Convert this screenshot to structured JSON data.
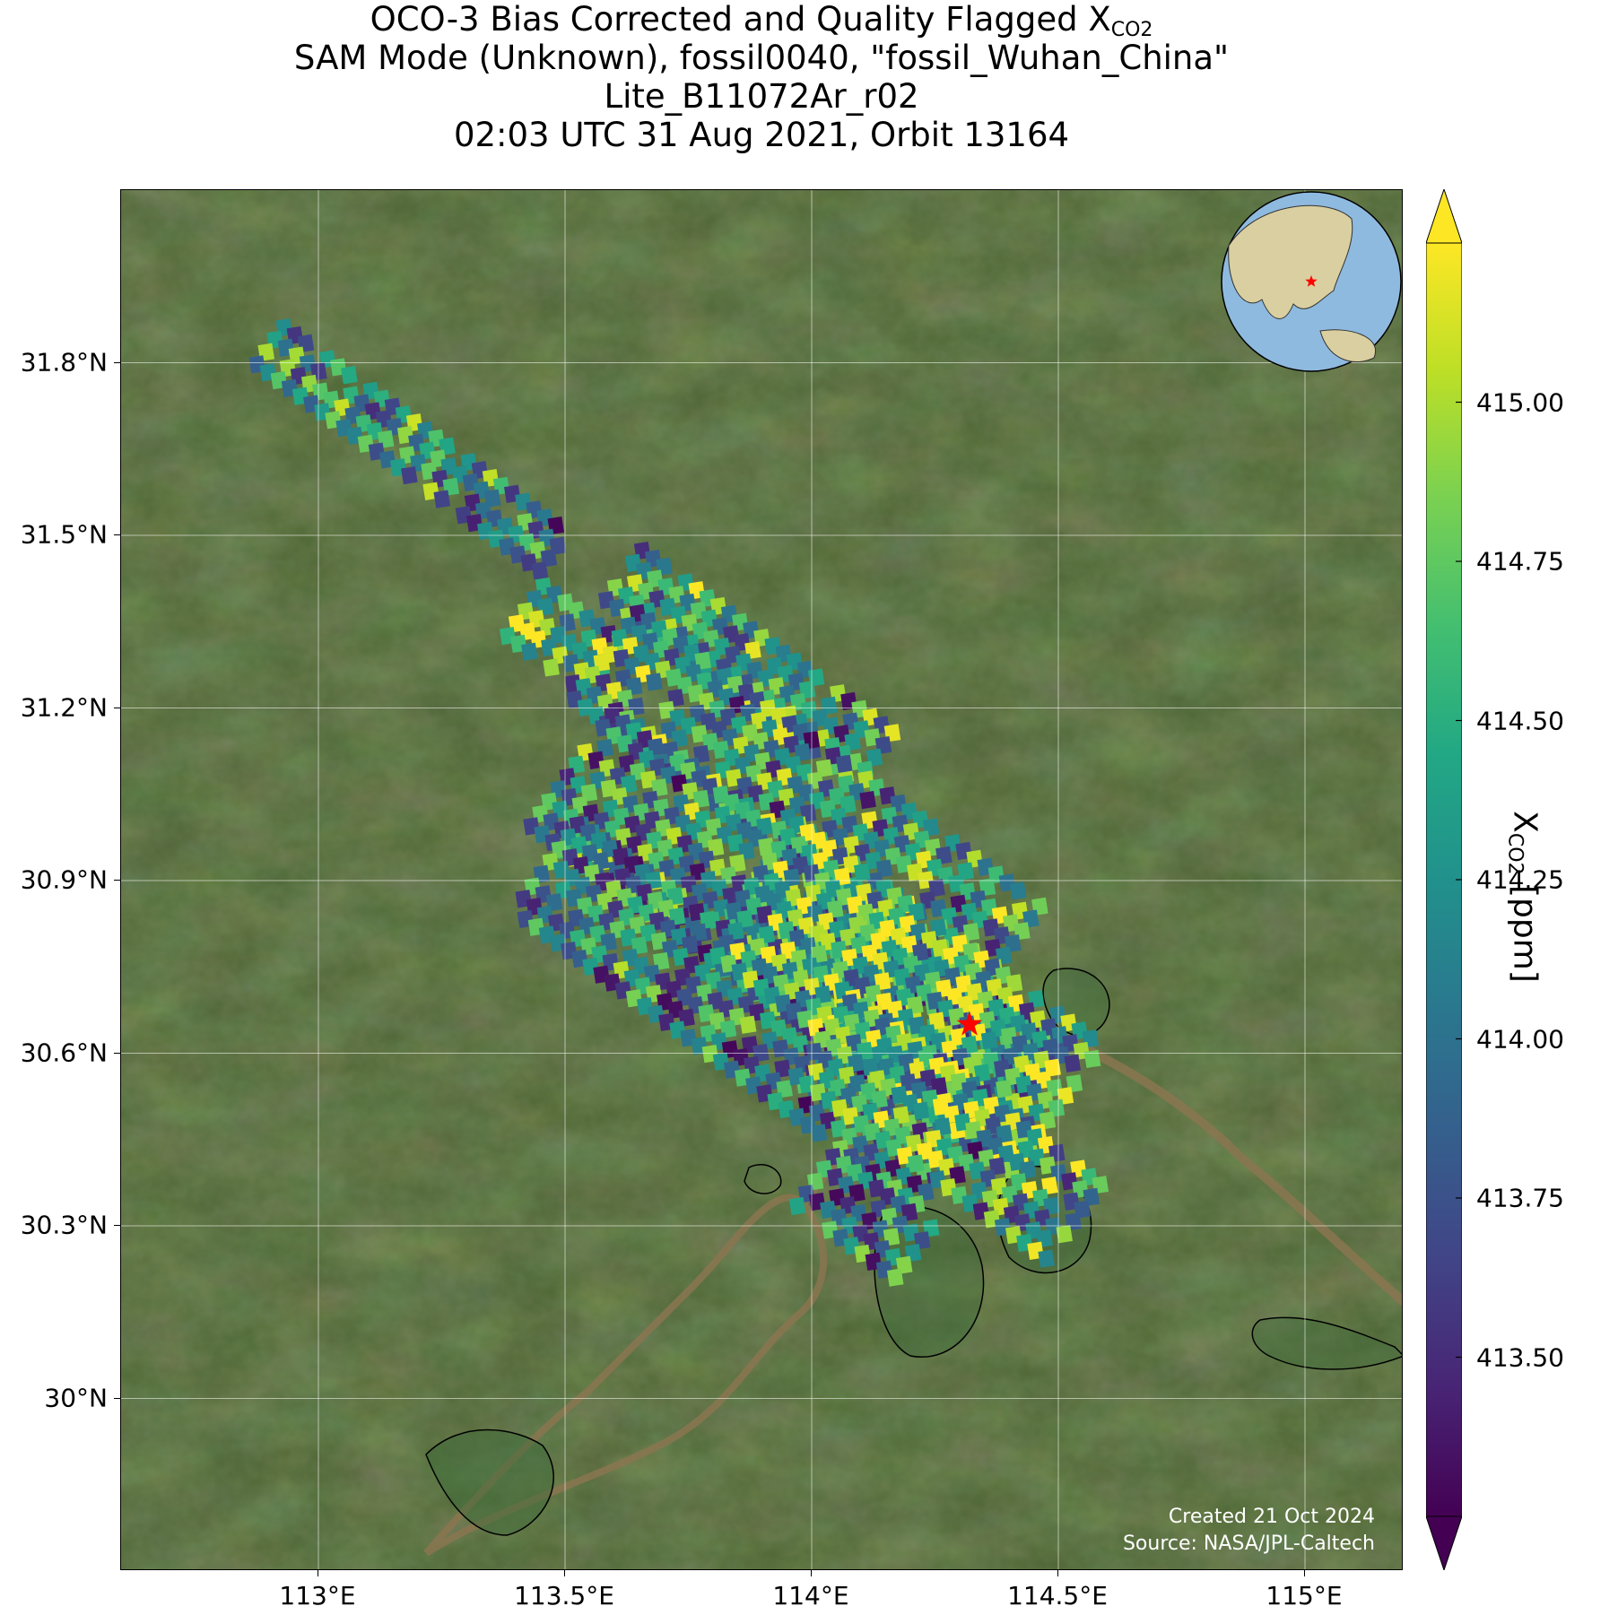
{
  "title": {
    "line1_prefix": "OCO-3 Bias Corrected and Quality Flagged X",
    "line1_subscript": "CO2",
    "line2": "SAM Mode (Unknown), fossil0040, \"fossil_Wuhan_China\"",
    "line3": "Lite_B11072Ar_r02",
    "line4": "02:03 UTC 31 Aug 2021, Orbit 13164"
  },
  "map": {
    "lon_range": [
      112.6,
      115.2
    ],
    "lat_range": [
      29.7,
      32.1
    ],
    "lon_ticks": [
      {
        "value": 113.0,
        "label": "113°E"
      },
      {
        "value": 113.5,
        "label": "113.5°E"
      },
      {
        "value": 114.0,
        "label": "114°E"
      },
      {
        "value": 114.5,
        "label": "114.5°E"
      },
      {
        "value": 115.0,
        "label": "115°E"
      }
    ],
    "lat_ticks": [
      {
        "value": 31.8,
        "label": "31.8°N"
      },
      {
        "value": 31.5,
        "label": "31.5°N"
      },
      {
        "value": 31.2,
        "label": "31.2°N"
      },
      {
        "value": 30.9,
        "label": "30.9°N"
      },
      {
        "value": 30.6,
        "label": "30.6°N"
      },
      {
        "value": 30.3,
        "label": "30.3°N"
      },
      {
        "value": 30.0,
        "label": "30°N"
      }
    ],
    "target_marker": {
      "lon": 114.32,
      "lat": 30.65,
      "color": "#ff0000"
    },
    "inset_globe": {
      "center_lon": 115.0,
      "center_lat": 30.0,
      "marker_color": "#ff0000"
    },
    "credit_line1": "Created 21 Oct 2024",
    "credit_line2": "Source: NASA/JPL-Caltech"
  },
  "colorbar": {
    "colormap": "viridis",
    "vmin": 413.25,
    "vmax": 415.25,
    "extend": "both",
    "ticks": [
      {
        "value": 413.5,
        "label": "413.50"
      },
      {
        "value": 413.75,
        "label": "413.75"
      },
      {
        "value": 414.0,
        "label": "414.00"
      },
      {
        "value": 414.25,
        "label": "414.25"
      },
      {
        "value": 414.5,
        "label": "414.50"
      },
      {
        "value": 414.75,
        "label": "414.75"
      },
      {
        "value": 415.0,
        "label": "415.00"
      }
    ],
    "label_prefix": "X",
    "label_subscript": "CO2",
    "label_suffix": " [ppm]"
  }
}
